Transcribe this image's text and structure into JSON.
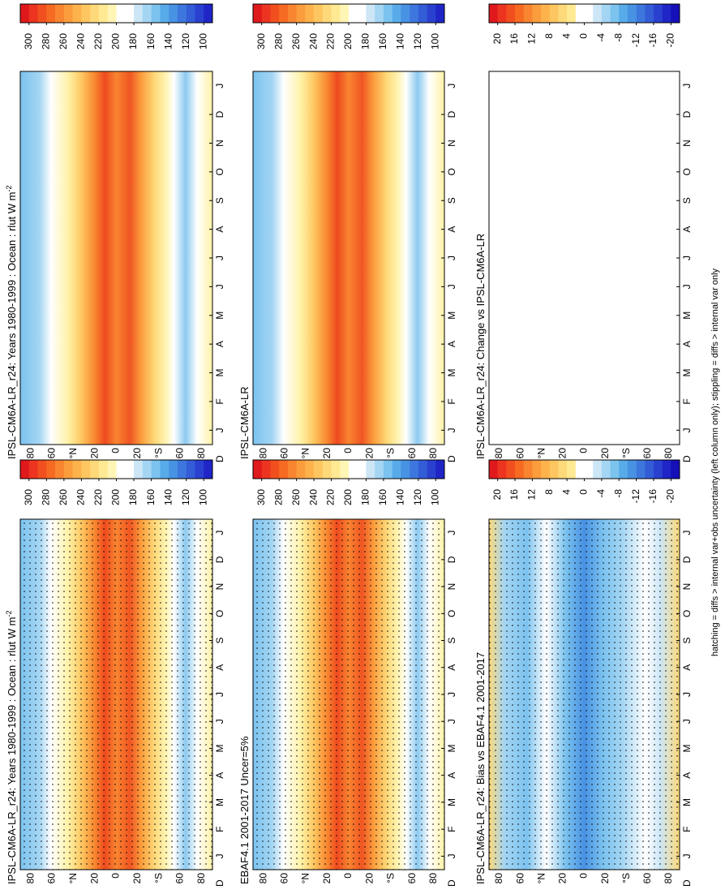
{
  "figure": {
    "months": [
      "D",
      "J",
      "F",
      "M",
      "A",
      "M",
      "J",
      "J",
      "A",
      "S",
      "O",
      "N",
      "D",
      "J"
    ],
    "latitudes": [
      "80",
      "60",
      "°N",
      "20",
      "0",
      "20",
      "°S",
      "60",
      "80"
    ],
    "panels": [
      {
        "title": "IPSL-CM6A-LR_r24: Years 1980-1999 : Ocean : rlut W m",
        "title_sup": "-2",
        "field": "absolute",
        "stippling": true,
        "colorbar": {
          "lim": [
            310,
            90
          ],
          "ticks": [
            300,
            280,
            260,
            240,
            220,
            200,
            180,
            160,
            140,
            120,
            100
          ],
          "colors": [
            "#e0191c",
            "#ec3420",
            "#f24f1f",
            "#f66a22",
            "#f98530",
            "#fb9d3c",
            "#fdb24c",
            "#fec660",
            "#fed979",
            "#ffe993",
            "#fff5b5",
            "#ffffff",
            "#ffffff",
            "#cce6f6",
            "#a4d5f3",
            "#7cc3ef",
            "#58abe9",
            "#4892e3",
            "#3d77dd",
            "#335cd7",
            "#2a41d0",
            "#1f25c6"
          ]
        }
      },
      {
        "title": "IPSL-CM6A-LR_r24: Years 1980-1999 : Ocean : rlut W m",
        "title_sup": "-2",
        "field": "absolute",
        "stippling": false,
        "colorbar": {
          "lim": [
            310,
            90
          ],
          "ticks": [
            300,
            280,
            260,
            240,
            220,
            200,
            180,
            160,
            140,
            120,
            100
          ],
          "colors": [
            "#e0191c",
            "#ec3420",
            "#f24f1f",
            "#f66a22",
            "#f98530",
            "#fb9d3c",
            "#fdb24c",
            "#fec660",
            "#fed979",
            "#ffe993",
            "#fff5b5",
            "#ffffff",
            "#ffffff",
            "#cce6f6",
            "#a4d5f3",
            "#7cc3ef",
            "#58abe9",
            "#4892e3",
            "#3d77dd",
            "#335cd7",
            "#2a41d0",
            "#1f25c6"
          ]
        }
      },
      {
        "title": "EBAF4.1 2001-2017 Uncer=5%",
        "field": "absolute",
        "stippling": true,
        "colorbar": {
          "lim": [
            310,
            90
          ],
          "ticks": [
            300,
            280,
            260,
            240,
            220,
            200,
            180,
            160,
            140,
            120,
            100
          ],
          "colors": [
            "#e0191c",
            "#ec3420",
            "#f24f1f",
            "#f66a22",
            "#f98530",
            "#fb9d3c",
            "#fdb24c",
            "#fec660",
            "#fed979",
            "#ffe993",
            "#fff5b5",
            "#ffffff",
            "#ffffff",
            "#cce6f6",
            "#a4d5f3",
            "#7cc3ef",
            "#58abe9",
            "#4892e3",
            "#3d77dd",
            "#335cd7",
            "#2a41d0",
            "#1f25c6"
          ]
        }
      },
      {
        "title": "IPSL-CM6A-LR",
        "field": "absolute",
        "stippling": false,
        "colorbar": {
          "lim": [
            310,
            90
          ],
          "ticks": [
            300,
            280,
            260,
            240,
            220,
            200,
            180,
            160,
            140,
            120,
            100
          ],
          "colors": [
            "#e0191c",
            "#ec3420",
            "#f24f1f",
            "#f66a22",
            "#f98530",
            "#fb9d3c",
            "#fdb24c",
            "#fec660",
            "#fed979",
            "#ffe993",
            "#fff5b5",
            "#ffffff",
            "#ffffff",
            "#cce6f6",
            "#a4d5f3",
            "#7cc3ef",
            "#58abe9",
            "#4892e3",
            "#3d77dd",
            "#335cd7",
            "#2a41d0",
            "#1f25c6"
          ]
        }
      },
      {
        "title": "IPSL-CM6A-LR_r24: Bias vs EBAF4.1 2001-2017",
        "field": "bias",
        "stippling": true,
        "colorbar": {
          "lim": [
            22,
            -22
          ],
          "ticks": [
            20,
            16,
            12,
            8,
            4,
            0,
            -4,
            -8,
            -12,
            -16,
            -20
          ],
          "colors": [
            "#e0191c",
            "#ec3420",
            "#f24f1f",
            "#f66a22",
            "#f98530",
            "#fb9d3c",
            "#fdb24c",
            "#fec660",
            "#fed979",
            "#ffe993",
            "#ffffff",
            "#ffffff",
            "#cce6f6",
            "#a4d5f3",
            "#7cc3ef",
            "#58abe9",
            "#4892e3",
            "#3d77dd",
            "#335cd7",
            "#2a41d0",
            "#1f25c6",
            "#1510b8"
          ]
        }
      },
      {
        "title": "IPSL-CM6A-LR_r24: Change vs IPSL-CM6A-LR",
        "field": "change",
        "stippling": false,
        "colorbar": {
          "lim": [
            22,
            -22
          ],
          "ticks": [
            20,
            16,
            12,
            8,
            4,
            0,
            -4,
            -8,
            -12,
            -16,
            -20
          ],
          "colors": [
            "#e0191c",
            "#ec3420",
            "#f24f1f",
            "#f66a22",
            "#f98530",
            "#fb9d3c",
            "#fdb24c",
            "#fec660",
            "#fed979",
            "#ffe993",
            "#ffffff",
            "#ffffff",
            "#cce6f6",
            "#a4d5f3",
            "#7cc3ef",
            "#58abe9",
            "#4892e3",
            "#3d77dd",
            "#335cd7",
            "#2a41d0",
            "#1f25c6",
            "#1510b8"
          ]
        }
      }
    ],
    "footnote": "hatching = diffs > internal var+obs uncertainty (left column only); stippling = diffs > internal var only"
  }
}
